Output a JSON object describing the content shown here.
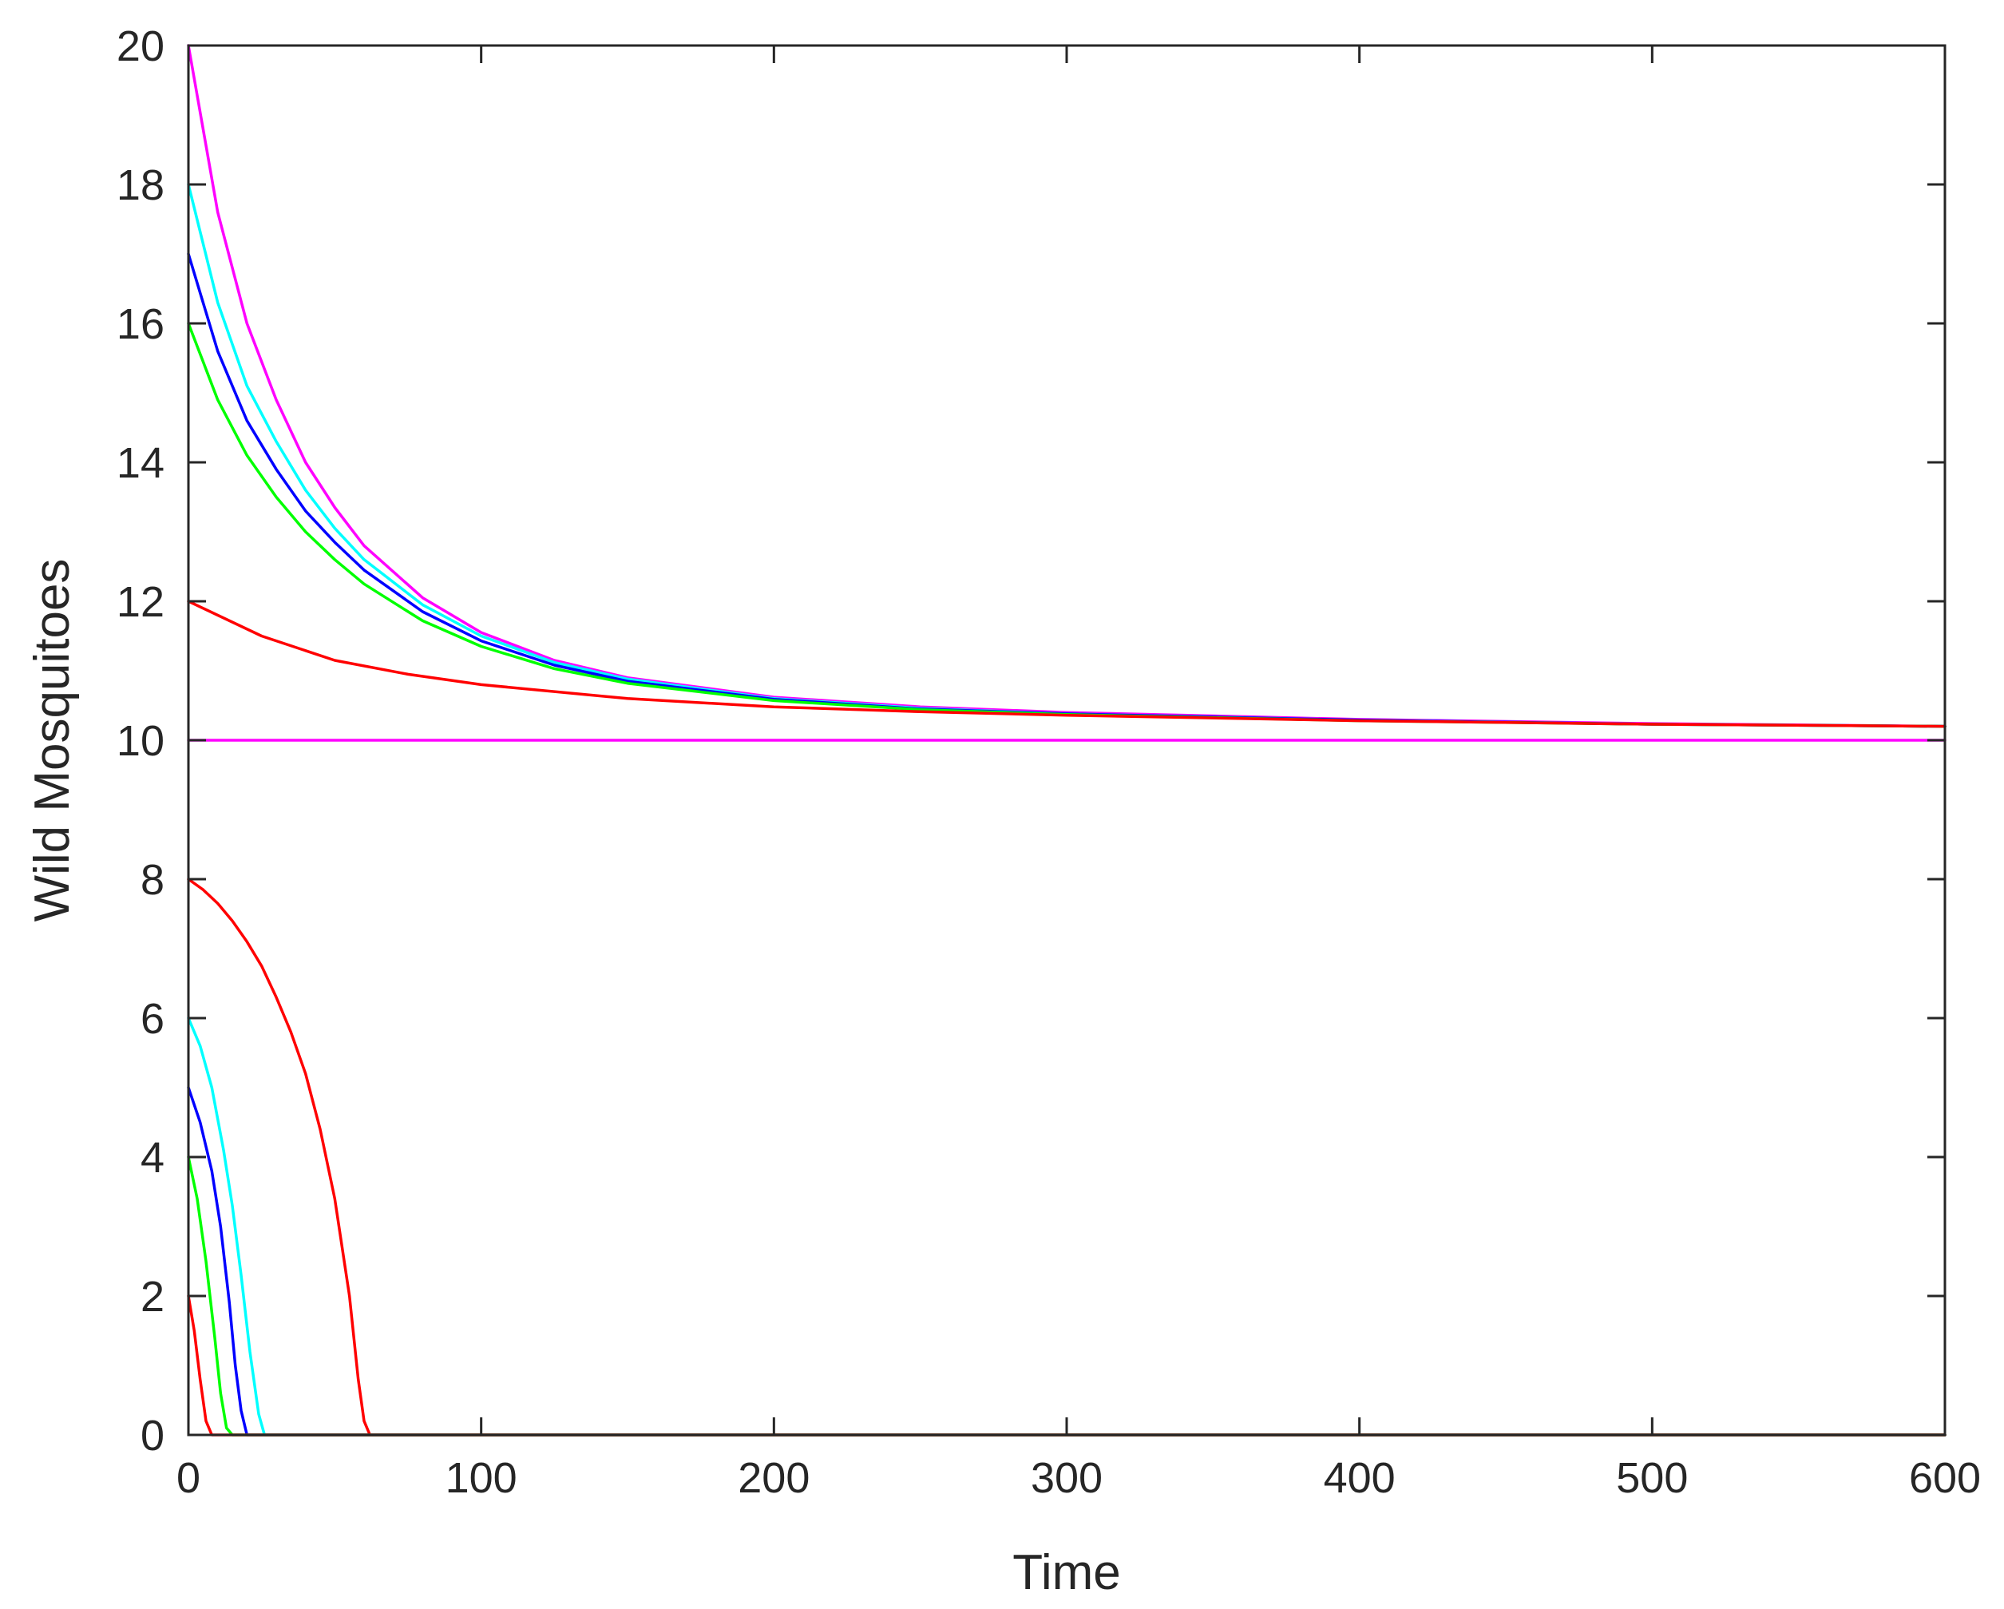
{
  "chart_data": {
    "type": "line",
    "title": "",
    "xlabel": "Time",
    "ylabel": "Wild Mosquitoes",
    "xlim": [
      0,
      600
    ],
    "ylim": [
      0,
      20
    ],
    "xticks": [
      0,
      100,
      200,
      300,
      400,
      500,
      600
    ],
    "yticks": [
      0,
      2,
      4,
      6,
      8,
      10,
      12,
      14,
      16,
      18,
      20
    ],
    "grid": false,
    "legend": "none",
    "series": [
      {
        "color": "#ff00ff",
        "x": [
          0,
          600
        ],
        "y": [
          10,
          10
        ]
      },
      {
        "color": "#ff00ff",
        "x": [
          0,
          10,
          20,
          30,
          40,
          50,
          60,
          80,
          100,
          125,
          150,
          200,
          250,
          300,
          400,
          500,
          600
        ],
        "y": [
          20,
          17.6,
          16.0,
          14.9,
          14.0,
          13.35,
          12.8,
          12.05,
          11.55,
          11.15,
          10.9,
          10.62,
          10.48,
          10.4,
          10.3,
          10.24,
          10.2
        ]
      },
      {
        "color": "#00ffff",
        "x": [
          0,
          10,
          20,
          30,
          40,
          50,
          60,
          80,
          100,
          125,
          150,
          200,
          250,
          300,
          400,
          500,
          600
        ],
        "y": [
          18,
          16.3,
          15.1,
          14.3,
          13.6,
          13.05,
          12.6,
          11.95,
          11.5,
          11.12,
          10.88,
          10.6,
          10.46,
          10.38,
          10.29,
          10.23,
          10.2
        ]
      },
      {
        "color": "#0000ff",
        "x": [
          0,
          10,
          20,
          30,
          40,
          50,
          60,
          80,
          100,
          125,
          150,
          200,
          250,
          300,
          400,
          500,
          600
        ],
        "y": [
          17,
          15.6,
          14.6,
          13.9,
          13.3,
          12.85,
          12.45,
          11.85,
          11.43,
          11.08,
          10.85,
          10.59,
          10.45,
          10.38,
          10.29,
          10.23,
          10.2
        ]
      },
      {
        "color": "#00ff00",
        "x": [
          0,
          10,
          20,
          30,
          40,
          50,
          60,
          80,
          100,
          125,
          150,
          200,
          250,
          300,
          400,
          500,
          600
        ],
        "y": [
          16,
          14.9,
          14.1,
          13.5,
          13.0,
          12.6,
          12.25,
          11.72,
          11.35,
          11.03,
          10.82,
          10.57,
          10.44,
          10.37,
          10.28,
          10.23,
          10.2
        ]
      },
      {
        "color": "#ff0000",
        "x": [
          0,
          25,
          50,
          75,
          100,
          150,
          200,
          250,
          300,
          400,
          500,
          600
        ],
        "y": [
          12,
          11.5,
          11.15,
          10.95,
          10.8,
          10.6,
          10.48,
          10.41,
          10.36,
          10.28,
          10.23,
          10.2
        ]
      },
      {
        "color": "#ff0000",
        "x": [
          0,
          5,
          10,
          15,
          20,
          25,
          30,
          35,
          40,
          45,
          50,
          55,
          58,
          60,
          62,
          600
        ],
        "y": [
          8,
          7.85,
          7.65,
          7.4,
          7.1,
          6.75,
          6.3,
          5.8,
          5.2,
          4.4,
          3.4,
          2.0,
          0.8,
          0.2,
          0,
          0
        ]
      },
      {
        "color": "#00ffff",
        "x": [
          0,
          4,
          8,
          12,
          15,
          18,
          21,
          24,
          26,
          600
        ],
        "y": [
          6,
          5.6,
          5.0,
          4.1,
          3.3,
          2.3,
          1.2,
          0.3,
          0,
          0
        ]
      },
      {
        "color": "#0000ff",
        "x": [
          0,
          4,
          8,
          11,
          14,
          16,
          18,
          20,
          600
        ],
        "y": [
          5,
          4.5,
          3.8,
          3.0,
          1.9,
          1.0,
          0.35,
          0,
          0
        ]
      },
      {
        "color": "#00ff00",
        "x": [
          0,
          3,
          6,
          9,
          11,
          13,
          15,
          600
        ],
        "y": [
          4,
          3.4,
          2.5,
          1.4,
          0.6,
          0.1,
          0,
          0
        ]
      },
      {
        "color": "#ff0000",
        "x": [
          0,
          2,
          4,
          6,
          8,
          600
        ],
        "y": [
          2,
          1.5,
          0.8,
          0.2,
          0,
          0
        ]
      }
    ]
  }
}
